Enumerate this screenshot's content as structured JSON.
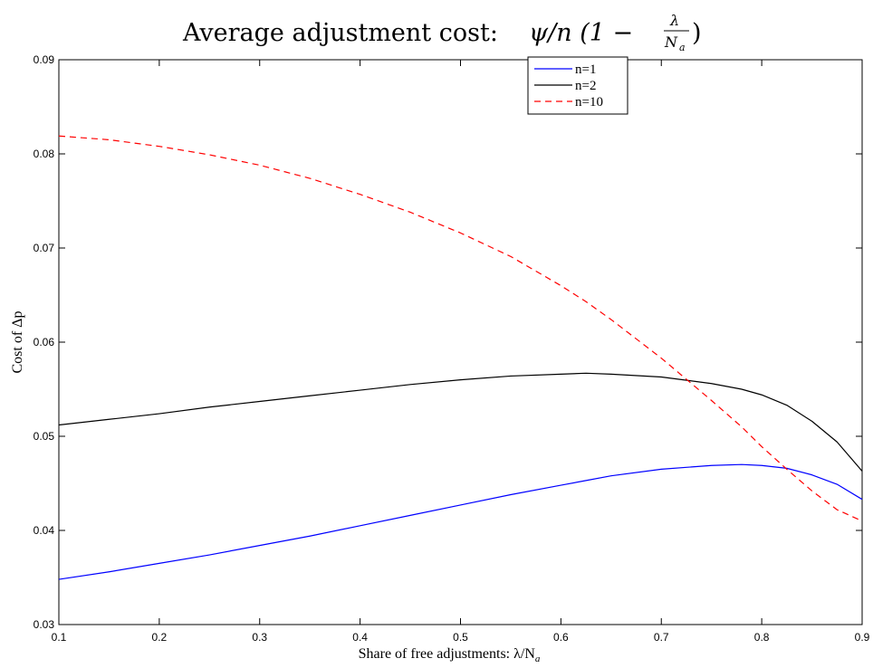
{
  "title": {
    "text": "Average adjustment cost:",
    "formula_main": "ψ/n (1 −",
    "formula_numerator": "λ",
    "formula_denominator": "N",
    "formula_denominator_sub": "a",
    "formula_close": ")"
  },
  "chart_data": {
    "type": "line",
    "x": [
      0.1,
      0.15,
      0.2,
      0.25,
      0.3,
      0.35,
      0.4,
      0.45,
      0.5,
      0.55,
      0.6,
      0.625,
      0.65,
      0.7,
      0.75,
      0.78,
      0.8,
      0.825,
      0.85,
      0.875,
      0.9
    ],
    "series": [
      {
        "name": "n=1",
        "color": "#0000ff",
        "dash": "solid",
        "values": [
          0.0348,
          0.0356,
          0.0365,
          0.0374,
          0.0384,
          0.0394,
          0.0405,
          0.0416,
          0.0427,
          0.0438,
          0.0448,
          0.0453,
          0.0458,
          0.0465,
          0.0469,
          0.047,
          0.0469,
          0.0466,
          0.0459,
          0.0449,
          0.0433
        ]
      },
      {
        "name": "n=2",
        "color": "#000000",
        "dash": "solid",
        "values": [
          0.0512,
          0.0518,
          0.0524,
          0.0531,
          0.0537,
          0.0543,
          0.0549,
          0.0555,
          0.056,
          0.0564,
          0.0566,
          0.0567,
          0.0566,
          0.0563,
          0.0556,
          0.055,
          0.0544,
          0.0533,
          0.0516,
          0.0494,
          0.0463
        ]
      },
      {
        "name": "n=10",
        "color": "#ff0000",
        "dash": "dashed",
        "values": [
          0.0819,
          0.0815,
          0.0808,
          0.0799,
          0.0788,
          0.0774,
          0.0757,
          0.0738,
          0.0716,
          0.0691,
          0.066,
          0.0643,
          0.0624,
          0.0583,
          0.0538,
          0.051,
          0.0489,
          0.0465,
          0.0442,
          0.0422,
          0.041
        ]
      }
    ],
    "xlabel": "Share of free adjustments: λ/N",
    "xlabel_sub": "a",
    "ylabel": "Cost of Δp",
    "xlim": [
      0.1,
      0.9
    ],
    "ylim": [
      0.03,
      0.09
    ],
    "xticks": [
      0.1,
      0.2,
      0.3,
      0.4,
      0.5,
      0.6,
      0.7,
      0.8,
      0.9
    ],
    "xtick_labels": [
      "0.1",
      "0.2",
      "0.3",
      "0.4",
      "0.5",
      "0.6",
      "0.7",
      "0.8",
      "0.9"
    ],
    "yticks": [
      0.03,
      0.04,
      0.05,
      0.06,
      0.07,
      0.08,
      0.09
    ],
    "ytick_labels": [
      "0.03",
      "0.04",
      "0.05",
      "0.06",
      "0.07",
      "0.08",
      "0.09"
    ],
    "grid": false,
    "legend_position": "top-center"
  }
}
